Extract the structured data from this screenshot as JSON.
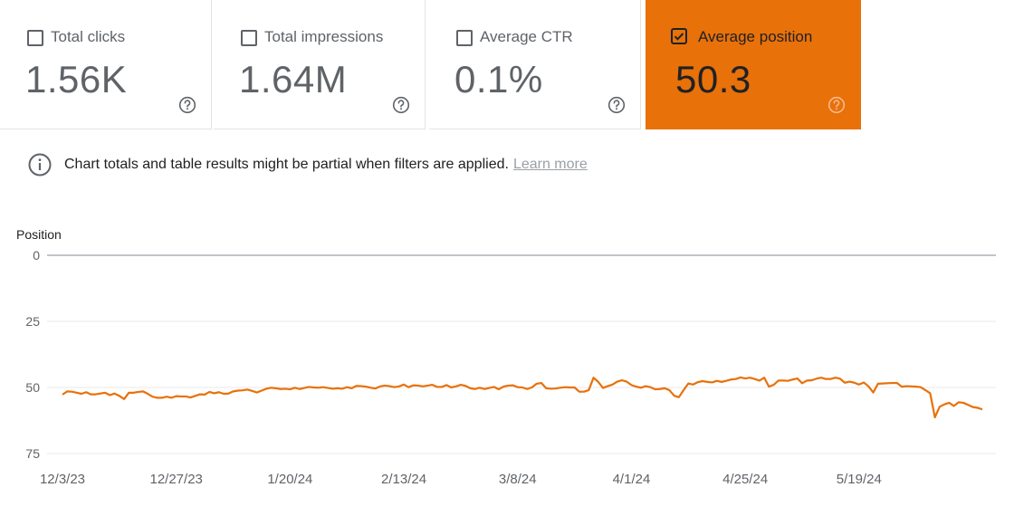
{
  "metrics": [
    {
      "label": "Total clicks",
      "value": "1.56K",
      "checked": false
    },
    {
      "label": "Total impressions",
      "value": "1.64M",
      "checked": false
    },
    {
      "label": "Average CTR",
      "value": "0.1%",
      "checked": false
    },
    {
      "label": "Average position",
      "value": "50.3",
      "checked": true
    }
  ],
  "info": {
    "message": "Chart totals and table results might be partial when filters are applied.",
    "link": "Learn more"
  },
  "colors": {
    "accent": "#e8710a",
    "grid": "#e8eaed",
    "axis_text": "#5f6368"
  },
  "chart_data": {
    "type": "line",
    "ylabel": "Position",
    "y_reversed": true,
    "ylim": [
      0,
      75
    ],
    "yticks": [
      "0",
      "25",
      "50",
      "75"
    ],
    "xtick_labels": [
      "12/3/23",
      "12/27/23",
      "1/20/24",
      "2/13/24",
      "3/8/24",
      "4/1/24",
      "4/25/24",
      "5/19/24"
    ],
    "x_start": "12/3/23",
    "x_end": "6/8/24",
    "series": [
      {
        "color": "#e8710a",
        "values": [
          52.7,
          51.5,
          51.6,
          52.0,
          52.4,
          51.8,
          52.6,
          52.6,
          52.3,
          52.0,
          52.9,
          52.3,
          53.2,
          54.4,
          52.0,
          52.0,
          51.7,
          51.5,
          52.4,
          53.5,
          53.9,
          53.9,
          53.5,
          53.9,
          53.3,
          53.4,
          53.4,
          53.8,
          53.2,
          52.6,
          52.7,
          51.7,
          52.2,
          51.8,
          52.4,
          52.3,
          51.5,
          51.2,
          51.1,
          50.8,
          51.3,
          51.9,
          51.2,
          50.5,
          50.1,
          50.3,
          50.6,
          50.5,
          50.7,
          50.1,
          50.6,
          50.2,
          49.8,
          50.0,
          50.1,
          49.9,
          50.2,
          50.5,
          50.3,
          50.5,
          49.9,
          50.3,
          49.4,
          49.5,
          49.7,
          50.1,
          50.4,
          49.6,
          49.3,
          49.5,
          49.9,
          49.6,
          48.9,
          49.9,
          49.2,
          49.3,
          49.6,
          49.3,
          49.0,
          49.8,
          49.8,
          49.1,
          50.0,
          49.6,
          49.0,
          49.4,
          50.3,
          50.6,
          50.1,
          50.6,
          50.2,
          49.8,
          50.7,
          49.7,
          49.3,
          49.2,
          49.9,
          50.0,
          50.6,
          50.0,
          48.6,
          48.3,
          50.3,
          50.5,
          50.4,
          50.1,
          49.9,
          50.0,
          50.0,
          51.6,
          51.6,
          51.0,
          46.3,
          47.9,
          50.2,
          49.5,
          48.9,
          47.8,
          47.3,
          47.8,
          49.1,
          49.7,
          50.1,
          49.5,
          49.9,
          50.7,
          50.6,
          50.3,
          51.0,
          53.1,
          53.7,
          51.0,
          48.5,
          48.9,
          48.0,
          47.6,
          47.9,
          48.1,
          47.5,
          47.9,
          47.5,
          47.0,
          46.8,
          46.2,
          46.6,
          46.3,
          46.8,
          47.4,
          46.3,
          49.7,
          49.0,
          47.4,
          47.4,
          47.5,
          47.0,
          46.6,
          48.4,
          47.4,
          47.3,
          46.7,
          46.3,
          46.8,
          46.8,
          46.3,
          46.7,
          48.2,
          47.8,
          48.2,
          48.9,
          48.1,
          49.6,
          51.9,
          48.6,
          48.5,
          48.4,
          48.3,
          48.3,
          49.7,
          49.5,
          49.6,
          49.7,
          49.9,
          51.0,
          52.2,
          61.3,
          57.3,
          56.4,
          55.8,
          57.0,
          55.6,
          55.8,
          56.6,
          57.4,
          57.7,
          58.3
        ]
      }
    ]
  }
}
